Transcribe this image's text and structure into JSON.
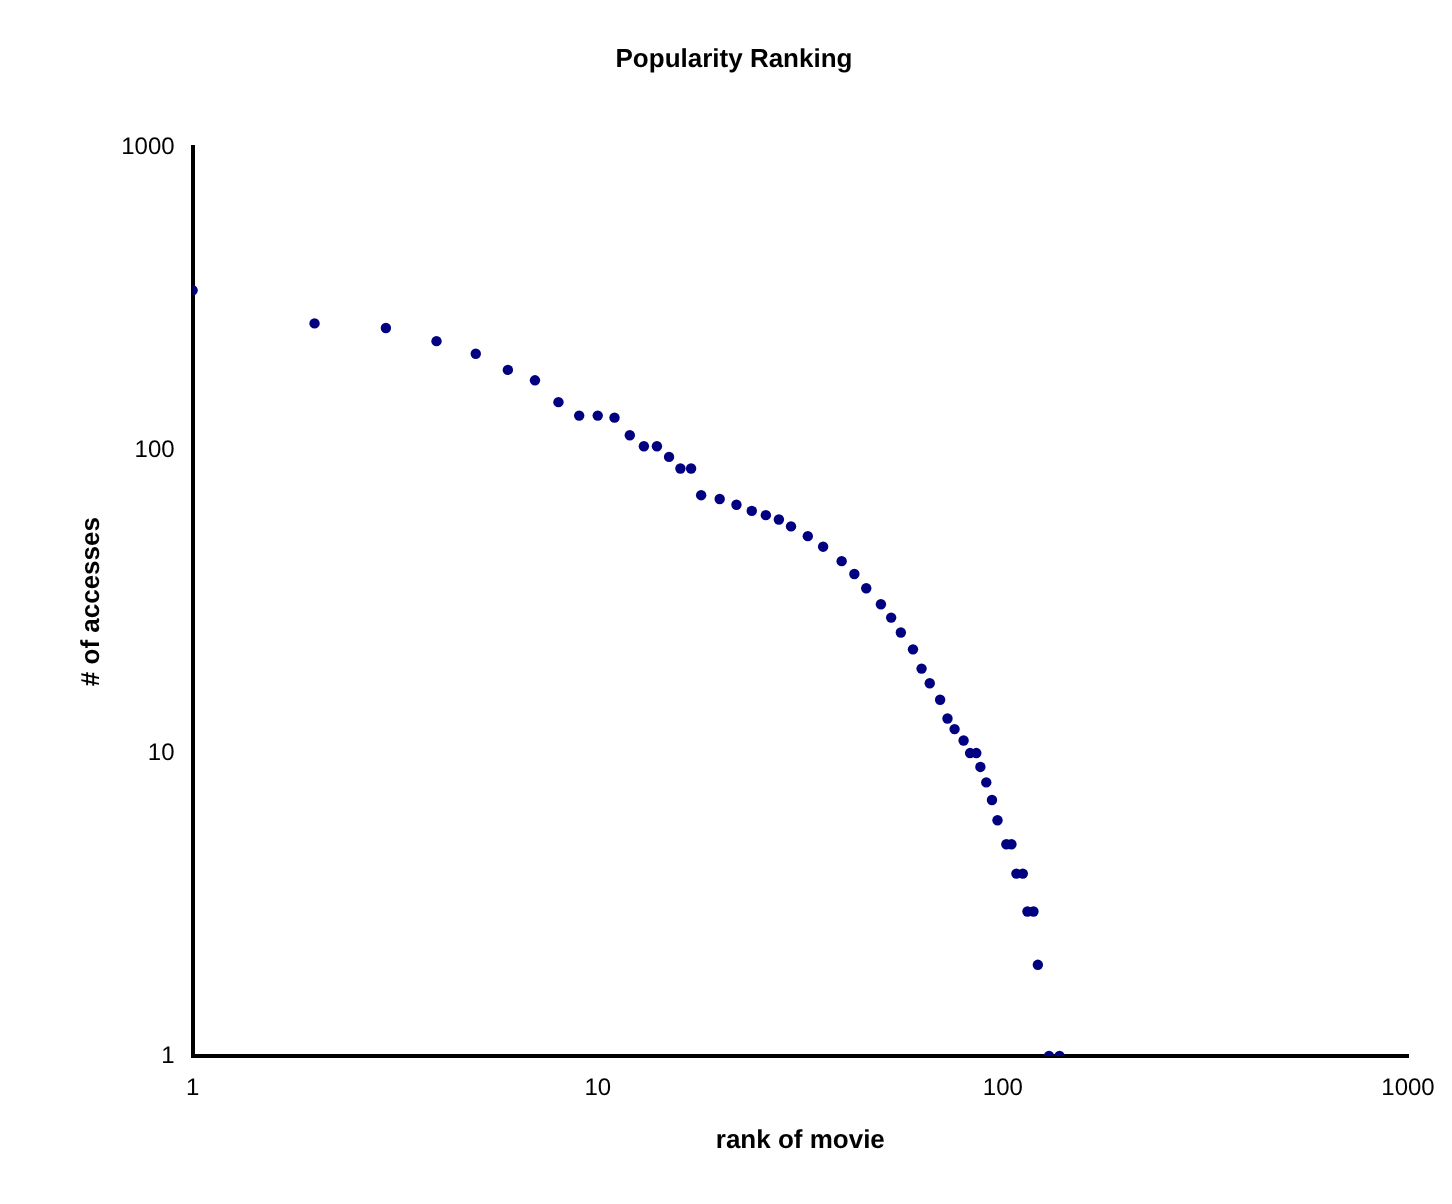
{
  "chart_data": {
    "type": "scatter",
    "title": "Popularity Ranking",
    "xlabel": "rank of movie",
    "ylabel": "# of accesses",
    "log": "xy",
    "grid": false,
    "legend": false,
    "marker": "circle",
    "xlim": [
      1,
      1000
    ],
    "ylim": [
      1,
      1000
    ],
    "xticks": [
      1,
      10,
      100,
      1000
    ],
    "yticks": [
      1,
      10,
      100,
      1000
    ],
    "series": [
      {
        "color": "#000080",
        "x": [
          1,
          2,
          3,
          4,
          5,
          6,
          7,
          8,
          9,
          10,
          11,
          12,
          13,
          14,
          15,
          16,
          17,
          18,
          20,
          22,
          24,
          26,
          28,
          30,
          33,
          36,
          40,
          43,
          46,
          50,
          53,
          56,
          60,
          63,
          66,
          70,
          73,
          76,
          80,
          83,
          86,
          88,
          91,
          94,
          97,
          102,
          105,
          108,
          112,
          115,
          119,
          122,
          130,
          138
        ],
        "values": [
          337,
          262,
          253,
          229,
          208,
          184,
          170,
          144,
          130,
          130,
          128,
          112,
          103,
          103,
          95,
          87,
          87,
          71,
          69,
          66,
          63,
          61,
          59,
          56,
          52,
          48,
          43,
          39,
          35,
          31,
          28,
          25,
          22,
          19,
          17,
          15,
          13,
          12,
          11,
          10,
          10,
          9,
          8,
          7,
          6,
          5,
          5,
          4,
          4,
          3,
          3,
          2,
          1,
          1
        ]
      }
    ]
  }
}
